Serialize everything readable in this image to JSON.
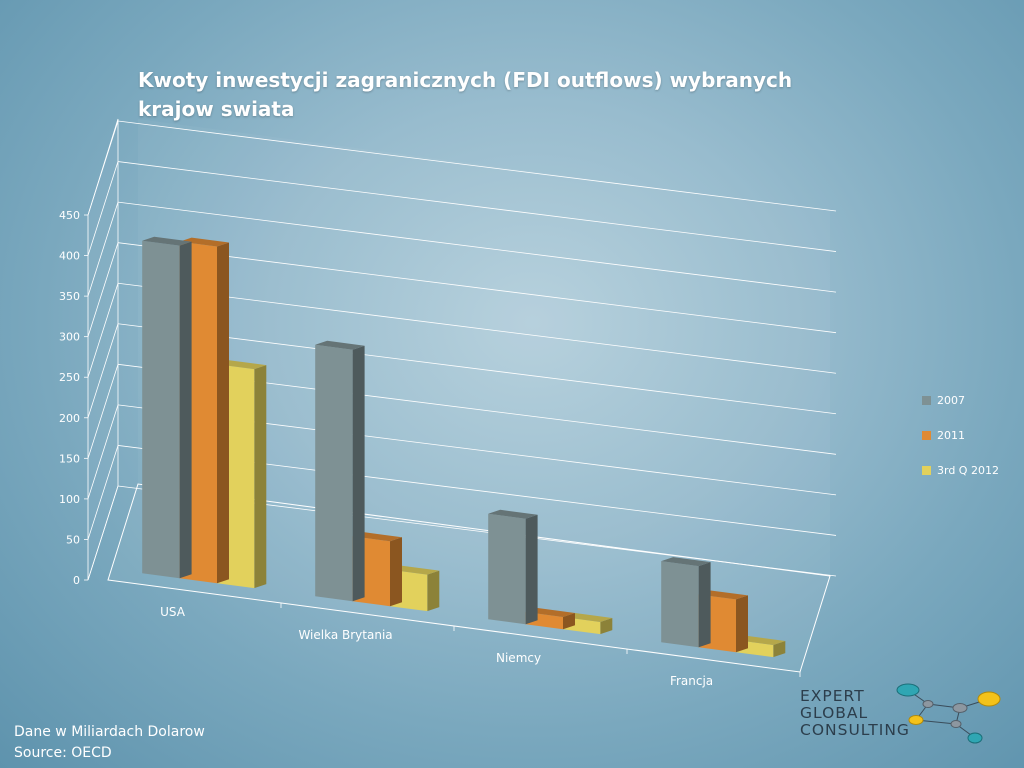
{
  "title": "Kwoty inwestycji zagranicznych (FDI outflows) wybranych krajow swiata",
  "footnote": {
    "line1": "Dane w Miliardach Dolarow",
    "line2": "Source:  OECD"
  },
  "logo": {
    "line1": "EXPERT",
    "line2": "GLOBAL",
    "line3": "CONSULTING"
  },
  "chart_data": {
    "type": "bar",
    "style": "3d-clustered-column",
    "title": "Kwoty inwestycji zagranicznych (FDI outflows) wybranych krajow swiata",
    "categories": [
      "USA",
      "Wielka Brytania",
      "Niemcy",
      "Francja"
    ],
    "series": [
      {
        "name": "2007",
        "color": "#7e9194",
        "values": [
          410,
          310,
          130,
          100
        ]
      },
      {
        "name": "2011",
        "color": "#e08a33",
        "values": [
          415,
          80,
          15,
          65
        ]
      },
      {
        "name": "3rd Q 2012",
        "color": "#e2d15c",
        "values": [
          270,
          45,
          15,
          15
        ]
      }
    ],
    "yticks": [
      "0",
      "50",
      "100",
      "150",
      "200",
      "250",
      "300",
      "350",
      "400",
      "450"
    ],
    "ylim": [
      0,
      450
    ],
    "grid": true,
    "legend": "right"
  }
}
